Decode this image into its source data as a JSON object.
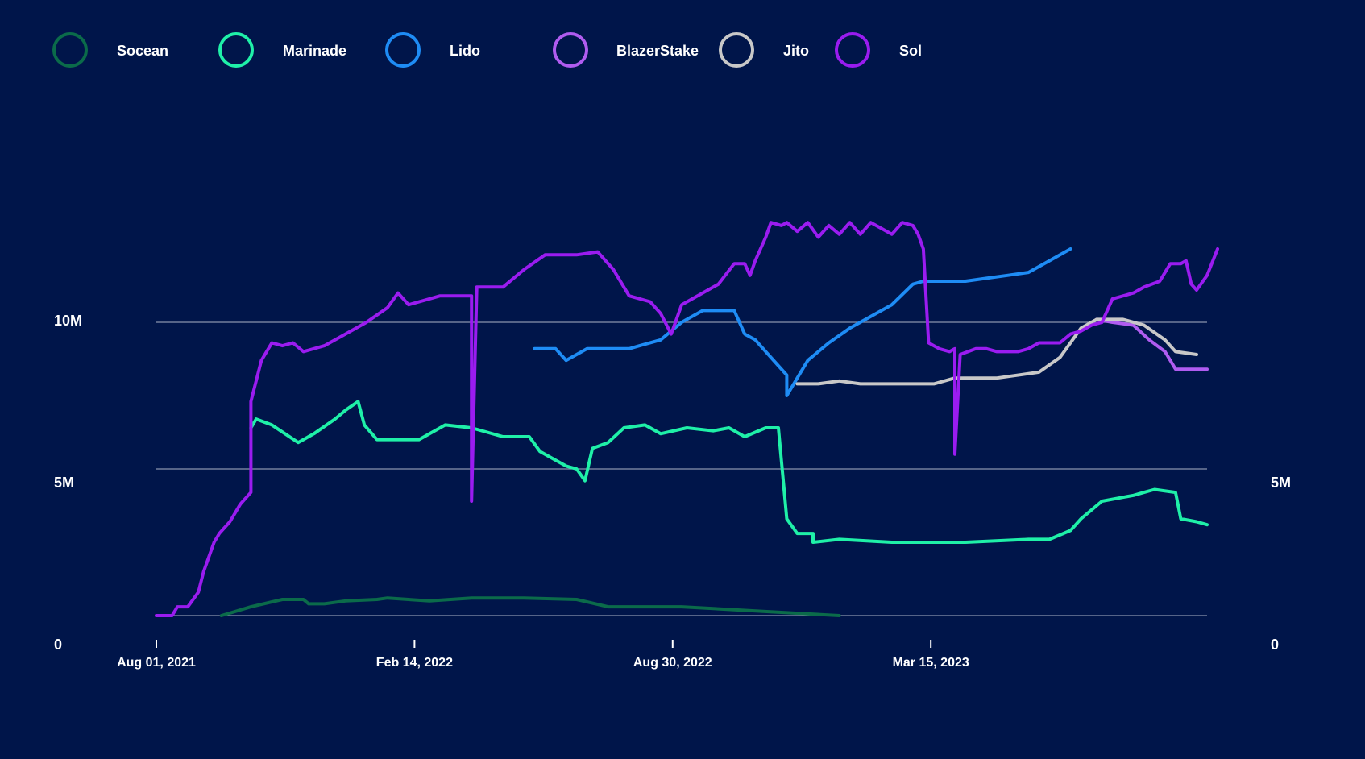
{
  "chart_data": {
    "type": "line",
    "title": "",
    "xlabel": "",
    "ylabel": "",
    "ylim": [
      0,
      15
    ],
    "x_range": [
      0,
      1
    ],
    "grid": true,
    "legend_position": "top-left",
    "x_ticks": [
      {
        "label": "Aug 01, 2021",
        "at": 0.0
      },
      {
        "label": "Feb 14, 2022",
        "at": 0.2457
      },
      {
        "label": "Aug 30, 2022",
        "at": 0.4914
      },
      {
        "label": "Mar 15, 2023",
        "at": 0.7371
      }
    ],
    "y_ticks_left": [
      {
        "label": "0",
        "value": 0
      },
      {
        "label": "5M",
        "value": 5
      },
      {
        "label": "10M",
        "value": 10
      }
    ],
    "y_ticks_right": [
      {
        "label": "0",
        "value": 0
      },
      {
        "label": "5M",
        "value": 5
      }
    ],
    "series": [
      {
        "name": "Socean",
        "color": "#0b6b4a",
        "points": [
          [
            0.062,
            0.0
          ],
          [
            0.09,
            0.3
          ],
          [
            0.12,
            0.55
          ],
          [
            0.14,
            0.55
          ],
          [
            0.145,
            0.4
          ],
          [
            0.16,
            0.4
          ],
          [
            0.18,
            0.5
          ],
          [
            0.21,
            0.55
          ],
          [
            0.22,
            0.6
          ],
          [
            0.26,
            0.5
          ],
          [
            0.3,
            0.6
          ],
          [
            0.35,
            0.6
          ],
          [
            0.4,
            0.55
          ],
          [
            0.43,
            0.3
          ],
          [
            0.5,
            0.3
          ],
          [
            0.55,
            0.2
          ],
          [
            0.6,
            0.1
          ],
          [
            0.65,
            0.0
          ]
        ]
      },
      {
        "name": "Marinade",
        "color": "#1ff0a8",
        "points": [
          [
            0.09,
            6.4
          ],
          [
            0.095,
            6.7
          ],
          [
            0.11,
            6.5
          ],
          [
            0.135,
            5.9
          ],
          [
            0.15,
            6.2
          ],
          [
            0.17,
            6.7
          ],
          [
            0.18,
            7.0
          ],
          [
            0.192,
            7.3
          ],
          [
            0.198,
            6.5
          ],
          [
            0.21,
            6.0
          ],
          [
            0.25,
            6.0
          ],
          [
            0.275,
            6.5
          ],
          [
            0.3,
            6.4
          ],
          [
            0.33,
            6.1
          ],
          [
            0.355,
            6.1
          ],
          [
            0.365,
            5.6
          ],
          [
            0.38,
            5.3
          ],
          [
            0.39,
            5.1
          ],
          [
            0.4,
            5.0
          ],
          [
            0.408,
            4.6
          ],
          [
            0.415,
            5.7
          ],
          [
            0.43,
            5.9
          ],
          [
            0.445,
            6.4
          ],
          [
            0.465,
            6.5
          ],
          [
            0.48,
            6.2
          ],
          [
            0.505,
            6.4
          ],
          [
            0.53,
            6.3
          ],
          [
            0.545,
            6.4
          ],
          [
            0.56,
            6.1
          ],
          [
            0.58,
            6.4
          ],
          [
            0.592,
            6.4
          ],
          [
            0.6,
            3.3
          ],
          [
            0.61,
            2.8
          ],
          [
            0.625,
            2.8
          ],
          [
            0.625,
            2.5
          ],
          [
            0.65,
            2.6
          ],
          [
            0.7,
            2.5
          ],
          [
            0.77,
            2.5
          ],
          [
            0.83,
            2.6
          ],
          [
            0.85,
            2.6
          ],
          [
            0.87,
            2.9
          ],
          [
            0.88,
            3.3
          ],
          [
            0.9,
            3.9
          ],
          [
            0.93,
            4.1
          ],
          [
            0.94,
            4.2
          ],
          [
            0.95,
            4.3
          ],
          [
            0.97,
            4.2
          ],
          [
            0.975,
            3.3
          ],
          [
            0.99,
            3.2
          ],
          [
            1.0,
            3.1
          ]
        ]
      },
      {
        "name": "Lido",
        "color": "#1e8cf5",
        "points": [
          [
            0.36,
            9.1
          ],
          [
            0.38,
            9.1
          ],
          [
            0.39,
            8.7
          ],
          [
            0.41,
            9.1
          ],
          [
            0.45,
            9.1
          ],
          [
            0.46,
            9.2
          ],
          [
            0.48,
            9.4
          ],
          [
            0.5,
            10.0
          ],
          [
            0.52,
            10.4
          ],
          [
            0.55,
            10.4
          ],
          [
            0.56,
            9.6
          ],
          [
            0.57,
            9.4
          ],
          [
            0.58,
            9.0
          ],
          [
            0.6,
            8.2
          ],
          [
            0.6,
            7.5
          ],
          [
            0.62,
            8.7
          ],
          [
            0.64,
            9.3
          ],
          [
            0.66,
            9.8
          ],
          [
            0.68,
            10.2
          ],
          [
            0.7,
            10.6
          ],
          [
            0.72,
            11.3
          ],
          [
            0.73,
            11.4
          ],
          [
            0.75,
            11.4
          ],
          [
            0.77,
            11.4
          ],
          [
            0.79,
            11.5
          ],
          [
            0.81,
            11.6
          ],
          [
            0.83,
            11.7
          ],
          [
            0.85,
            12.1
          ],
          [
            0.87,
            12.5
          ],
          [
            0.87,
            12.5
          ]
        ]
      },
      {
        "name": "BlazerStake",
        "color": "#b05cf0",
        "points": [
          [
            0.895,
            10.1
          ],
          [
            0.91,
            10.0
          ],
          [
            0.93,
            9.9
          ],
          [
            0.945,
            9.4
          ],
          [
            0.96,
            9.0
          ],
          [
            0.97,
            8.4
          ],
          [
            0.99,
            8.4
          ],
          [
            1.0,
            8.4
          ]
        ]
      },
      {
        "name": "Jito",
        "color": "#c8c8c8",
        "points": [
          [
            0.61,
            7.9
          ],
          [
            0.63,
            7.9
          ],
          [
            0.65,
            8.0
          ],
          [
            0.67,
            7.9
          ],
          [
            0.7,
            7.9
          ],
          [
            0.74,
            7.9
          ],
          [
            0.76,
            8.1
          ],
          [
            0.8,
            8.1
          ],
          [
            0.84,
            8.3
          ],
          [
            0.86,
            8.8
          ],
          [
            0.88,
            9.8
          ],
          [
            0.895,
            10.1
          ],
          [
            0.92,
            10.1
          ],
          [
            0.94,
            9.9
          ],
          [
            0.96,
            9.4
          ],
          [
            0.97,
            9.0
          ],
          [
            0.99,
            8.9
          ]
        ]
      },
      {
        "name": "Sol",
        "color": "#9a1cf0",
        "points": [
          [
            0.0,
            0.0
          ],
          [
            0.015,
            0.0
          ],
          [
            0.02,
            0.3
          ],
          [
            0.03,
            0.3
          ],
          [
            0.04,
            0.8
          ],
          [
            0.045,
            1.5
          ],
          [
            0.05,
            2.0
          ],
          [
            0.055,
            2.5
          ],
          [
            0.06,
            2.8
          ],
          [
            0.07,
            3.2
          ],
          [
            0.08,
            3.8
          ],
          [
            0.09,
            4.2
          ],
          [
            0.09,
            7.3
          ],
          [
            0.1,
            8.7
          ],
          [
            0.11,
            9.3
          ],
          [
            0.12,
            9.2
          ],
          [
            0.13,
            9.3
          ],
          [
            0.14,
            9.0
          ],
          [
            0.16,
            9.2
          ],
          [
            0.18,
            9.6
          ],
          [
            0.2,
            10.0
          ],
          [
            0.22,
            10.5
          ],
          [
            0.23,
            11.0
          ],
          [
            0.24,
            10.6
          ],
          [
            0.26,
            10.8
          ],
          [
            0.27,
            10.9
          ],
          [
            0.3,
            10.9
          ],
          [
            0.3,
            3.9
          ],
          [
            0.305,
            11.2
          ],
          [
            0.33,
            11.2
          ],
          [
            0.35,
            11.8
          ],
          [
            0.37,
            12.3
          ],
          [
            0.4,
            12.3
          ],
          [
            0.42,
            12.4
          ],
          [
            0.435,
            11.8
          ],
          [
            0.45,
            10.9
          ],
          [
            0.47,
            10.7
          ],
          [
            0.48,
            10.3
          ],
          [
            0.49,
            9.6
          ],
          [
            0.5,
            10.6
          ],
          [
            0.52,
            11.0
          ],
          [
            0.535,
            11.3
          ],
          [
            0.55,
            12.0
          ],
          [
            0.56,
            12.0
          ],
          [
            0.565,
            11.6
          ],
          [
            0.57,
            12.1
          ],
          [
            0.58,
            12.9
          ],
          [
            0.585,
            13.4
          ],
          [
            0.595,
            13.3
          ],
          [
            0.6,
            13.4
          ],
          [
            0.61,
            13.1
          ],
          [
            0.62,
            13.4
          ],
          [
            0.63,
            12.9
          ],
          [
            0.64,
            13.3
          ],
          [
            0.65,
            13.0
          ],
          [
            0.66,
            13.4
          ],
          [
            0.67,
            13.0
          ],
          [
            0.68,
            13.4
          ],
          [
            0.69,
            13.2
          ],
          [
            0.7,
            13.0
          ],
          [
            0.71,
            13.4
          ],
          [
            0.72,
            13.3
          ],
          [
            0.725,
            13.0
          ],
          [
            0.73,
            12.5
          ],
          [
            0.735,
            9.3
          ],
          [
            0.745,
            9.1
          ],
          [
            0.755,
            9.0
          ],
          [
            0.76,
            9.1
          ],
          [
            0.76,
            5.5
          ],
          [
            0.765,
            8.9
          ],
          [
            0.78,
            9.1
          ],
          [
            0.79,
            9.1
          ],
          [
            0.8,
            9.0
          ],
          [
            0.82,
            9.0
          ],
          [
            0.83,
            9.1
          ],
          [
            0.84,
            9.3
          ],
          [
            0.86,
            9.3
          ],
          [
            0.87,
            9.6
          ],
          [
            0.88,
            9.7
          ],
          [
            0.89,
            9.9
          ],
          [
            0.9,
            10.0
          ],
          [
            0.91,
            10.8
          ],
          [
            0.93,
            11.0
          ],
          [
            0.94,
            11.2
          ],
          [
            0.955,
            11.4
          ],
          [
            0.965,
            12.0
          ],
          [
            0.975,
            12.0
          ],
          [
            0.98,
            12.1
          ],
          [
            0.985,
            11.3
          ],
          [
            0.99,
            11.1
          ],
          [
            1.0,
            11.6
          ],
          [
            1.01,
            12.5
          ]
        ]
      }
    ]
  }
}
